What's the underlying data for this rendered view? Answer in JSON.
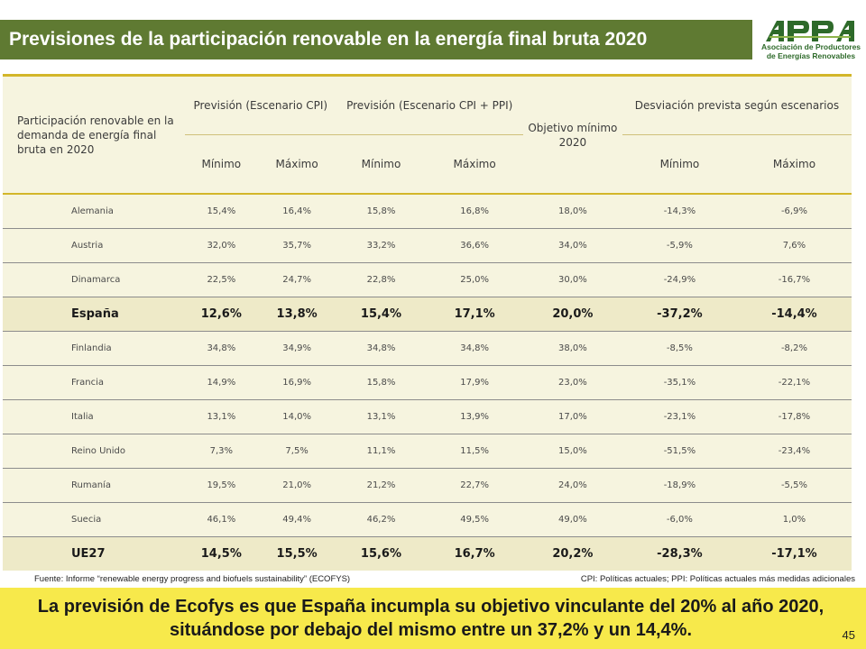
{
  "slide": {
    "title": "Previsiones de la participación renovable en la energía final bruta 2020",
    "page_number": "45"
  },
  "logo": {
    "mark": "APPA",
    "line1": "Asociación de Productores",
    "line2": "de Energías Renovables",
    "color": "#2e6a2a"
  },
  "table": {
    "row_header": "Participación renovable en la demanda de energía final bruta en 2020",
    "group_cpi": "Previsión (Escenario CPI)",
    "group_cpi_ppi": "Previsión (Escenario CPI + PPI)",
    "objetivo": "Objetivo mínimo 2020",
    "group_desviacion": "Desviación prevista según escenarios",
    "sub_min": "Mínimo",
    "sub_max": "Máximo",
    "rows": [
      {
        "name": "Alemania",
        "cpi_min": "15,4%",
        "cpi_max": "16,4%",
        "ppi_min": "15,8%",
        "ppi_max": "16,8%",
        "objetivo": "18,0%",
        "dev_min": "-14,3%",
        "dev_max": "-6,9%"
      },
      {
        "name": "Austria",
        "cpi_min": "32,0%",
        "cpi_max": "35,7%",
        "ppi_min": "33,2%",
        "ppi_max": "36,6%",
        "objetivo": "34,0%",
        "dev_min": "-5,9%",
        "dev_max": "7,6%"
      },
      {
        "name": "Dinamarca",
        "cpi_min": "22,5%",
        "cpi_max": "24,7%",
        "ppi_min": "22,8%",
        "ppi_max": "25,0%",
        "objetivo": "30,0%",
        "dev_min": "-24,9%",
        "dev_max": "-16,7%"
      },
      {
        "name": "España",
        "cpi_min": "12,6%",
        "cpi_max": "13,8%",
        "ppi_min": "15,4%",
        "ppi_max": "17,1%",
        "objetivo": "20,0%",
        "dev_min": "-37,2%",
        "dev_max": "-14,4%"
      },
      {
        "name": "Finlandia",
        "cpi_min": "34,8%",
        "cpi_max": "34,9%",
        "ppi_min": "34,8%",
        "ppi_max": "34,8%",
        "objetivo": "38,0%",
        "dev_min": "-8,5%",
        "dev_max": "-8,2%"
      },
      {
        "name": "Francia",
        "cpi_min": "14,9%",
        "cpi_max": "16,9%",
        "ppi_min": "15,8%",
        "ppi_max": "17,9%",
        "objetivo": "23,0%",
        "dev_min": "-35,1%",
        "dev_max": "-22,1%"
      },
      {
        "name": "Italia",
        "cpi_min": "13,1%",
        "cpi_max": "14,0%",
        "ppi_min": "13,1%",
        "ppi_max": "13,9%",
        "objetivo": "17,0%",
        "dev_min": "-23,1%",
        "dev_max": "-17,8%"
      },
      {
        "name": "Reino Unido",
        "cpi_min": "7,3%",
        "cpi_max": "7,5%",
        "ppi_min": "11,1%",
        "ppi_max": "11,5%",
        "objetivo": "15,0%",
        "dev_min": "-51,5%",
        "dev_max": "-23,4%"
      },
      {
        "name": "Rumanía",
        "cpi_min": "19,5%",
        "cpi_max": "21,0%",
        "ppi_min": "21,2%",
        "ppi_max": "22,7%",
        "objetivo": "24,0%",
        "dev_min": "-18,9%",
        "dev_max": "-5,5%"
      },
      {
        "name": "Suecia",
        "cpi_min": "46,1%",
        "cpi_max": "49,4%",
        "ppi_min": "46,2%",
        "ppi_max": "49,5%",
        "objetivo": "49,0%",
        "dev_min": "-6,0%",
        "dev_max": "1,0%"
      },
      {
        "name": "UE27",
        "cpi_min": "14,5%",
        "cpi_max": "15,5%",
        "ppi_min": "15,6%",
        "ppi_max": "16,7%",
        "objetivo": "20,2%",
        "dev_min": "-28,3%",
        "dev_max": "-17,1%"
      }
    ]
  },
  "footnotes": {
    "source": "Fuente: Informe “renewable energy progress and biofuels sustainability” (ECOFYS)",
    "legend": "CPI: Políticas actuales; PPI: Políticas actuales más medidas adicionales"
  },
  "conclusion": "La previsión de Ecofys es que España incumpla su objetivo vinculante del 20% al año 2020, situándose por debajo del mismo entre un 37,2% y un 14,4%.",
  "colors": {
    "title_bar": "#5f7a32",
    "table_bg": "#f6f4df",
    "accent_line": "#d3b62a",
    "conclusion_bg": "#f7e94b"
  }
}
